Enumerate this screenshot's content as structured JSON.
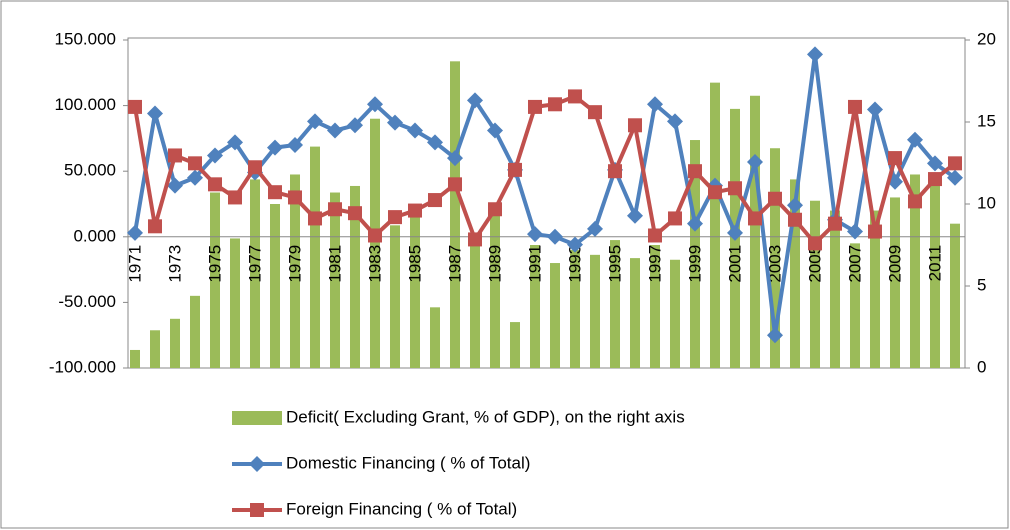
{
  "chart_data": {
    "type": "combo",
    "categories": [
      "1971",
      null,
      "1973",
      null,
      "1975",
      null,
      "1977",
      null,
      "1979",
      null,
      "1981",
      null,
      "1983",
      null,
      "1985",
      null,
      "1987",
      null,
      "1989",
      null,
      "1991",
      null,
      "1993",
      null,
      "1995",
      null,
      "1997",
      null,
      "1999",
      null,
      "2001",
      null,
      "2003",
      null,
      "2005",
      null,
      "2007",
      null,
      "2009",
      null,
      "2011",
      null
    ],
    "series": [
      {
        "name": "Deficit( Excluding Grant, % of GDP), on the right axis",
        "type": "bar",
        "axis": "y2",
        "color": "#9bbb59",
        "values": [
          1.1,
          2.3,
          3.0,
          4.4,
          10.7,
          7.9,
          11.5,
          10.0,
          11.8,
          13.5,
          10.7,
          11.1,
          15.2,
          8.7,
          9.4,
          3.7,
          18.7,
          7.5,
          9.3,
          2.8,
          7.5,
          6.4,
          7.2,
          6.9,
          7.8,
          6.7,
          7.5,
          6.6,
          13.9,
          17.4,
          15.8,
          16.6,
          13.4,
          11.5,
          10.2,
          9.6,
          7.6,
          9.6,
          10.4,
          11.8,
          11.3,
          8.8
        ]
      },
      {
        "name": "Domestic Financing ( % of Total)",
        "type": "line",
        "marker": "diamond",
        "color": "#4f81bd",
        "values": [
          3,
          94,
          39,
          45,
          62,
          72,
          49,
          68,
          70,
          88,
          81,
          85,
          101,
          87,
          81,
          72,
          60,
          104,
          81,
          51,
          2,
          0,
          -6,
          6,
          51,
          16,
          101,
          88,
          10,
          39,
          3,
          57,
          -75,
          24,
          139,
          13,
          4,
          97,
          42,
          74,
          56,
          45
        ]
      },
      {
        "name": "Foreign Financing ( % of Total)",
        "type": "line",
        "marker": "square",
        "color": "#c0504d",
        "values": [
          99,
          8,
          62,
          56,
          40,
          30,
          53,
          34,
          30,
          14,
          21,
          18,
          1,
          15,
          20,
          28,
          40,
          -2,
          21,
          51,
          99,
          101,
          107,
          95,
          50,
          85,
          1,
          14,
          50,
          34,
          37,
          14,
          29,
          13,
          -5,
          10,
          99,
          4,
          60,
          27,
          44,
          56
        ]
      }
    ],
    "ylim": [
      -100,
      150
    ],
    "yticks": [
      {
        "value": -100,
        "label": "-100.000"
      },
      {
        "value": -50,
        "label": "-50.000"
      },
      {
        "value": 0,
        "label": "0.000"
      },
      {
        "value": 50,
        "label": "50.000"
      },
      {
        "value": 100,
        "label": "100.000"
      },
      {
        "value": 150,
        "label": "150.000"
      }
    ],
    "y2lim": [
      0,
      20
    ],
    "y2ticks": [
      0,
      5,
      10,
      15,
      20
    ],
    "grid": false,
    "legend": "bottom"
  }
}
